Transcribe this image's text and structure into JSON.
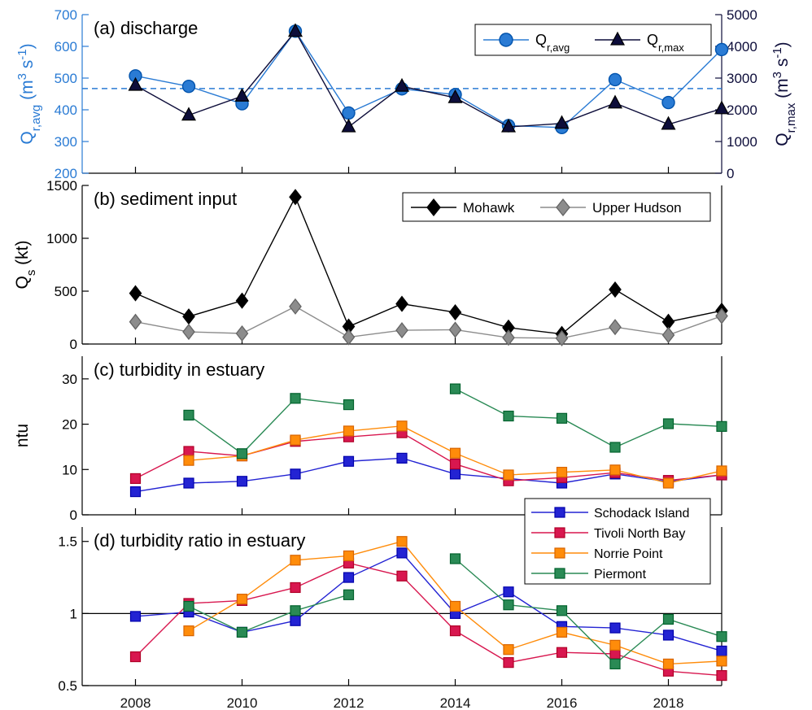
{
  "colors": {
    "avg": "#2a7bd4",
    "max": "#0d0d3a",
    "mohawk": "#000000",
    "upper": "#8c8c8c",
    "schodack": "#2323d3",
    "tivoli": "#d8174f",
    "norrie": "#ff8c0a",
    "piermont": "#2a8a55",
    "axis": "#000000"
  },
  "x_axis": {
    "ticks": [
      2008,
      2010,
      2012,
      2014,
      2016,
      2018
    ],
    "tick_labels": [
      "2008",
      "2010",
      "2012",
      "2014",
      "2016",
      "2018"
    ],
    "range": [
      2007.0,
      2019.0
    ]
  },
  "chart_data": [
    {
      "id": "a",
      "type": "line",
      "panel_label": "(a) discharge",
      "x": [
        2008,
        2009,
        2010,
        2011,
        2012,
        2013,
        2014,
        2015,
        2016,
        2017,
        2018,
        2019
      ],
      "ylim": [
        200,
        700
      ],
      "yticks": [
        200,
        300,
        400,
        500,
        600,
        700
      ],
      "ylabel": "Q",
      "ylabel_sub": "r,avg",
      "ylabel_unit": "(m",
      "ylabel_unit2": " s",
      "ylabel_sup1": "3",
      "ylabel_sup2": "-1",
      "ylabel_close": ")",
      "y2lim": [
        0,
        5000
      ],
      "y2ticks": [
        0,
        1000,
        2000,
        3000,
        4000,
        5000
      ],
      "y2label": "Q",
      "y2label_sub": "r,max",
      "y2label_unit": "(m",
      "y2label_unit2": " s",
      "y2label_sup1": "3",
      "y2label_sup2": "-1",
      "y2label_close": ")",
      "hline": 467,
      "series": [
        {
          "name": "Q",
          "name_sub": "r,avg",
          "axis": "left",
          "marker": "circle",
          "color_key": "avg",
          "values": [
            507,
            474,
            419,
            648,
            390,
            466,
            448,
            350,
            344,
            495,
            423,
            590
          ]
        },
        {
          "name": "Q",
          "name_sub": "r,max",
          "axis": "right",
          "marker": "triangle",
          "color_key": "max",
          "values": [
            2770,
            1830,
            2430,
            4470,
            1460,
            2740,
            2380,
            1460,
            1570,
            2210,
            1540,
            2030
          ]
        }
      ],
      "legend": "top-right"
    },
    {
      "id": "b",
      "type": "line",
      "panel_label": "(b) sediment input",
      "x": [
        2008,
        2009,
        2010,
        2011,
        2012,
        2013,
        2014,
        2015,
        2016,
        2017,
        2018,
        2019
      ],
      "ylim": [
        0,
        1500
      ],
      "yticks": [
        0,
        500,
        1000,
        1500
      ],
      "ylabel": "Q",
      "ylabel_sub": "s",
      "ylabel_unit": " (kt)",
      "series": [
        {
          "name": "Mohawk",
          "marker": "diamond",
          "color_key": "mohawk",
          "values": [
            480,
            260,
            410,
            1390,
            165,
            380,
            300,
            155,
            95,
            515,
            210,
            315
          ]
        },
        {
          "name": "Upper Hudson",
          "marker": "diamond",
          "color_key": "upper",
          "values": [
            210,
            115,
            100,
            355,
            65,
            130,
            135,
            60,
            55,
            160,
            85,
            265
          ]
        }
      ],
      "legend": "top-right"
    },
    {
      "id": "c",
      "type": "line",
      "panel_label": "(c) turbidity in estuary",
      "x": [
        2008,
        2009,
        2010,
        2011,
        2012,
        2013,
        2014,
        2015,
        2016,
        2017,
        2018,
        2019
      ],
      "ylim": [
        0,
        35
      ],
      "yticks": [
        0,
        10,
        20,
        30
      ],
      "ylabel": "ntu",
      "series": [
        {
          "name": "Schodack Island",
          "marker": "square",
          "color_key": "schodack",
          "values": [
            5.1,
            7.0,
            7.4,
            9.0,
            11.8,
            12.5,
            9.0,
            8.0,
            7.0,
            9.0,
            7.3,
            8.8
          ]
        },
        {
          "name": "Tivoli North Bay",
          "marker": "square",
          "color_key": "tivoli",
          "values": [
            8.0,
            14.0,
            13.0,
            16.2,
            17.2,
            18.1,
            11.2,
            7.5,
            8.2,
            9.3,
            7.6,
            8.8
          ]
        },
        {
          "name": "Norrie Point",
          "marker": "square",
          "color_key": "norrie",
          "values": [
            null,
            12.0,
            13.0,
            16.5,
            18.5,
            19.6,
            13.6,
            8.8,
            9.4,
            9.9,
            7.0,
            9.7
          ]
        },
        {
          "name": "Piermont",
          "marker": "square",
          "color_key": "piermont",
          "values": [
            null,
            22.0,
            13.5,
            25.7,
            24.3,
            null,
            27.8,
            21.8,
            21.3,
            14.9,
            20.1,
            19.5
          ]
        }
      ]
    },
    {
      "id": "d",
      "type": "line",
      "panel_label": "(d) turbidity ratio in estuary",
      "x": [
        2008,
        2009,
        2010,
        2011,
        2012,
        2013,
        2014,
        2015,
        2016,
        2017,
        2018,
        2019
      ],
      "ylim": [
        0.5,
        1.6
      ],
      "yticks": [
        0.5,
        1,
        1.5
      ],
      "ytick_labels": [
        "0.5",
        "1",
        "1.5"
      ],
      "hline": 1,
      "series": [
        {
          "name": "Schodack Island",
          "marker": "square",
          "color_key": "schodack",
          "values": [
            0.98,
            1.01,
            0.87,
            0.95,
            1.25,
            1.42,
            1.0,
            1.15,
            0.91,
            0.9,
            0.85,
            0.74
          ]
        },
        {
          "name": "Tivoli North Bay",
          "marker": "square",
          "color_key": "tivoli",
          "values": [
            0.7,
            1.07,
            1.09,
            1.18,
            1.35,
            1.26,
            0.88,
            0.66,
            0.73,
            0.72,
            0.6,
            0.57
          ]
        },
        {
          "name": "Norrie Point",
          "marker": "square",
          "color_key": "norrie",
          "values": [
            null,
            0.88,
            1.1,
            1.37,
            1.4,
            1.5,
            1.05,
            0.75,
            0.87,
            0.78,
            0.65,
            0.67
          ]
        },
        {
          "name": "Piermont",
          "marker": "square",
          "color_key": "piermont",
          "values": [
            null,
            1.05,
            0.87,
            1.02,
            1.13,
            null,
            1.38,
            1.06,
            1.02,
            0.65,
            0.96,
            0.84
          ]
        }
      ],
      "legend": "top-right"
    }
  ]
}
